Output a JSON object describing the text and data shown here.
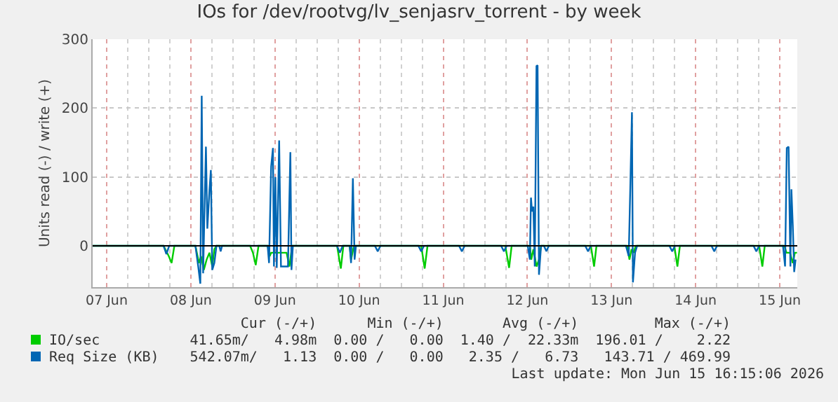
{
  "chart_data": {
    "type": "line",
    "title": "IOs for /dev/rootvg/lv_senjasrv_torrent - by week",
    "ylabel": "Units read (-) / write (+)",
    "xlim": [
      "2026-06-07T08:00",
      "2026-06-15T17:00"
    ],
    "xticks": [
      {
        "value": "2026-06-07T12:00",
        "label": "07 Jun"
      },
      {
        "value": "2026-06-07T18:00",
        "label": null
      },
      {
        "value": "2026-06-08T00:00",
        "label": null
      },
      {
        "value": "2026-06-08T06:00",
        "label": null
      },
      {
        "value": "2026-06-08T12:00",
        "label": "08 Jun"
      },
      {
        "value": "2026-06-08T18:00",
        "label": null
      },
      {
        "value": "2026-06-09T00:00",
        "label": null
      },
      {
        "value": "2026-06-09T06:00",
        "label": null
      },
      {
        "value": "2026-06-09T12:00",
        "label": "09 Jun"
      },
      {
        "value": "2026-06-09T18:00",
        "label": null
      },
      {
        "value": "2026-06-10T00:00",
        "label": null
      },
      {
        "value": "2026-06-10T06:00",
        "label": null
      },
      {
        "value": "2026-06-10T12:00",
        "label": "10 Jun"
      },
      {
        "value": "2026-06-10T18:00",
        "label": null
      },
      {
        "value": "2026-06-11T00:00",
        "label": null
      },
      {
        "value": "2026-06-11T06:00",
        "label": null
      },
      {
        "value": "2026-06-11T12:00",
        "label": "11 Jun"
      },
      {
        "value": "2026-06-11T18:00",
        "label": null
      },
      {
        "value": "2026-06-12T00:00",
        "label": null
      },
      {
        "value": "2026-06-12T06:00",
        "label": null
      },
      {
        "value": "2026-06-12T12:00",
        "label": "12 Jun"
      },
      {
        "value": "2026-06-12T18:00",
        "label": null
      },
      {
        "value": "2026-06-13T00:00",
        "label": null
      },
      {
        "value": "2026-06-13T06:00",
        "label": null
      },
      {
        "value": "2026-06-13T12:00",
        "label": "13 Jun"
      },
      {
        "value": "2026-06-13T18:00",
        "label": null
      },
      {
        "value": "2026-06-14T00:00",
        "label": null
      },
      {
        "value": "2026-06-14T06:00",
        "label": null
      },
      {
        "value": "2026-06-14T12:00",
        "label": "14 Jun"
      },
      {
        "value": "2026-06-14T18:00",
        "label": null
      },
      {
        "value": "2026-06-15T00:00",
        "label": null
      },
      {
        "value": "2026-06-15T06:00",
        "label": null
      },
      {
        "value": "2026-06-15T12:00",
        "label": "15 Jun"
      }
    ],
    "ylim": [
      -60,
      300
    ],
    "yticks": [
      0,
      100,
      200,
      300
    ],
    "grid": true,
    "legend": "bottom",
    "ref_lines": [
      {
        "axis": "y",
        "value": 0,
        "color": "#000000"
      }
    ],
    "marker": "none",
    "line_style": "solid",
    "series": [
      {
        "name": "IO/sec",
        "color": "#00cc00",
        "x": [
          "2026-06-07T08:00",
          "2026-06-08T04:14",
          "2026-06-08T05:43",
          "2026-06-08T06:31",
          "2026-06-08T07:19",
          "2026-06-08T13:19",
          "2026-06-08T14:19",
          "2026-06-08T14:55",
          "2026-06-08T15:43",
          "2026-06-08T16:31",
          "2026-06-08T17:19",
          "2026-06-08T18:07",
          "2026-06-08T18:43",
          "2026-06-08T19:19",
          "2026-06-09T04:55",
          "2026-06-09T05:43",
          "2026-06-09T06:31",
          "2026-06-09T07:19",
          "2026-06-09T09:55",
          "2026-06-09T10:31",
          "2026-06-09T10:55",
          "2026-06-09T13:43",
          "2026-06-09T15:19",
          "2026-06-09T16:07",
          "2026-06-09T16:55",
          "2026-06-10T05:43",
          "2026-06-10T06:48",
          "2026-06-10T07:31",
          "2026-06-10T09:19",
          "2026-06-10T09:43",
          "2026-06-10T10:31",
          "2026-06-11T05:43",
          "2026-06-11T06:43",
          "2026-06-11T07:31",
          "2026-06-12T05:43",
          "2026-06-12T06:48",
          "2026-06-12T07:31",
          "2026-06-12T12:43",
          "2026-06-12T13:07",
          "2026-06-12T13:43",
          "2026-06-12T14:38",
          "2026-06-12T15:19",
          "2026-06-12T15:55",
          "2026-06-13T06:07",
          "2026-06-13T07:02",
          "2026-06-13T07:43",
          "2026-06-13T16:31",
          "2026-06-13T17:07",
          "2026-06-13T17:43",
          "2026-06-13T18:19",
          "2026-06-13T18:55",
          "2026-06-14T05:55",
          "2026-06-14T06:48",
          "2026-06-14T07:31",
          "2026-06-15T06:07",
          "2026-06-15T07:02",
          "2026-06-15T07:43",
          "2026-06-15T13:19",
          "2026-06-15T13:55",
          "2026-06-15T14:55",
          "2026-06-15T15:43",
          "2026-06-15T16:19",
          "2026-06-15T16:55"
        ],
        "values": [
          0,
          0,
          -15,
          -25,
          0,
          0,
          -25,
          -15,
          -35,
          -20,
          -10,
          -30,
          -5,
          0,
          0,
          -10,
          -28,
          0,
          0,
          -15,
          -10,
          -10,
          -10,
          -30,
          0,
          0,
          -33,
          0,
          0,
          -20,
          0,
          0,
          -33,
          0,
          0,
          -32,
          0,
          0,
          -20,
          -5,
          -30,
          -20,
          0,
          0,
          -30,
          0,
          0,
          -20,
          -5,
          -10,
          0,
          0,
          -30,
          0,
          0,
          -30,
          0,
          0,
          -10,
          -10,
          -25,
          -10,
          -10
        ]
      },
      {
        "name": "Req Size (KB)",
        "color": "#0066b3",
        "x": [
          "2026-06-07T08:00",
          "2026-06-08T04:14",
          "2026-06-08T05:02",
          "2026-06-08T05:50",
          "2026-06-08T13:19",
          "2026-06-08T14:07",
          "2026-06-08T14:43",
          "2026-06-08T15:07",
          "2026-06-08T15:31",
          "2026-06-08T16:19",
          "2026-06-08T16:43",
          "2026-06-08T17:19",
          "2026-06-08T17:43",
          "2026-06-08T18:07",
          "2026-06-08T18:43",
          "2026-06-08T19:19",
          "2026-06-08T20:07",
          "2026-06-08T20:31",
          "2026-06-08T20:55",
          "2026-06-09T09:55",
          "2026-06-09T10:19",
          "2026-06-09T10:55",
          "2026-06-09T11:26",
          "2026-06-09T11:43",
          "2026-06-09T12:07",
          "2026-06-09T12:31",
          "2026-06-09T13:12",
          "2026-06-09T13:43",
          "2026-06-09T14:55",
          "2026-06-09T15:43",
          "2026-06-09T16:24",
          "2026-06-09T16:43",
          "2026-06-09T17:07",
          "2026-06-10T05:43",
          "2026-06-10T06:31",
          "2026-06-10T07:19",
          "2026-06-10T09:19",
          "2026-06-10T09:43",
          "2026-06-10T10:14",
          "2026-06-10T10:43",
          "2026-06-10T11:07",
          "2026-06-10T16:31",
          "2026-06-10T17:19",
          "2026-06-10T18:07",
          "2026-06-11T04:55",
          "2026-06-11T05:43",
          "2026-06-11T06:31",
          "2026-06-11T16:31",
          "2026-06-11T17:19",
          "2026-06-11T18:07",
          "2026-06-12T04:31",
          "2026-06-12T05:19",
          "2026-06-12T06:07",
          "2026-06-12T12:07",
          "2026-06-12T12:43",
          "2026-06-12T13:02",
          "2026-06-12T13:19",
          "2026-06-12T13:43",
          "2026-06-12T14:07",
          "2026-06-12T14:36",
          "2026-06-12T14:55",
          "2026-06-12T15:19",
          "2026-06-12T15:55",
          "2026-06-12T16:43",
          "2026-06-12T17:26",
          "2026-06-12T18:07",
          "2026-06-13T04:31",
          "2026-06-13T05:19",
          "2026-06-13T06:07",
          "2026-06-13T16:07",
          "2026-06-13T16:55",
          "2026-06-13T17:19",
          "2026-06-13T17:50",
          "2026-06-13T18:07",
          "2026-06-13T18:43",
          "2026-06-13T19:19",
          "2026-06-14T04:31",
          "2026-06-14T05:19",
          "2026-06-14T06:07",
          "2026-06-14T16:31",
          "2026-06-14T17:19",
          "2026-06-14T18:07",
          "2026-06-15T04:31",
          "2026-06-15T05:19",
          "2026-06-15T06:07",
          "2026-06-15T12:55",
          "2026-06-15T13:31",
          "2026-06-15T14:00",
          "2026-06-15T14:31",
          "2026-06-15T15:02",
          "2026-06-15T15:19",
          "2026-06-15T15:43",
          "2026-06-15T16:07",
          "2026-06-15T16:31"
        ],
        "values": [
          0,
          0,
          -12,
          0,
          0,
          -30,
          -55,
          218,
          -40,
          144,
          25,
          80,
          110,
          -35,
          -25,
          0,
          0,
          -8,
          0,
          0,
          -25,
          115,
          142,
          -30,
          100,
          -32,
          153,
          -30,
          -30,
          -30,
          136,
          -35,
          0,
          0,
          -10,
          0,
          0,
          -25,
          98,
          -20,
          0,
          0,
          -8,
          0,
          0,
          -8,
          0,
          0,
          -8,
          0,
          0,
          -8,
          0,
          0,
          -20,
          70,
          50,
          57,
          -30,
          261,
          262,
          -42,
          0,
          0,
          -8,
          0,
          0,
          -8,
          0,
          0,
          -15,
          74,
          194,
          -53,
          -10,
          0,
          0,
          -8,
          0,
          0,
          -8,
          0,
          0,
          -8,
          0,
          0,
          -30,
          142,
          144,
          -30,
          82,
          30,
          -38,
          -20
        ]
      }
    ],
    "annotations": [
      "Cur (-/+)",
      "Min (-/+)",
      "Avg (-/+)",
      "Max (-/+)",
      "41.65m/   4.98m",
      "0.00 /   0.00",
      "1.40 /  22.33m",
      "196.01 /    2.22",
      "542.07m/   1.13",
      "0.00 /   0.00",
      "2.35 /   6.73",
      "143.71 / 469.99",
      "Last update: Mon Jun 15 16:15:06 2026"
    ]
  }
}
